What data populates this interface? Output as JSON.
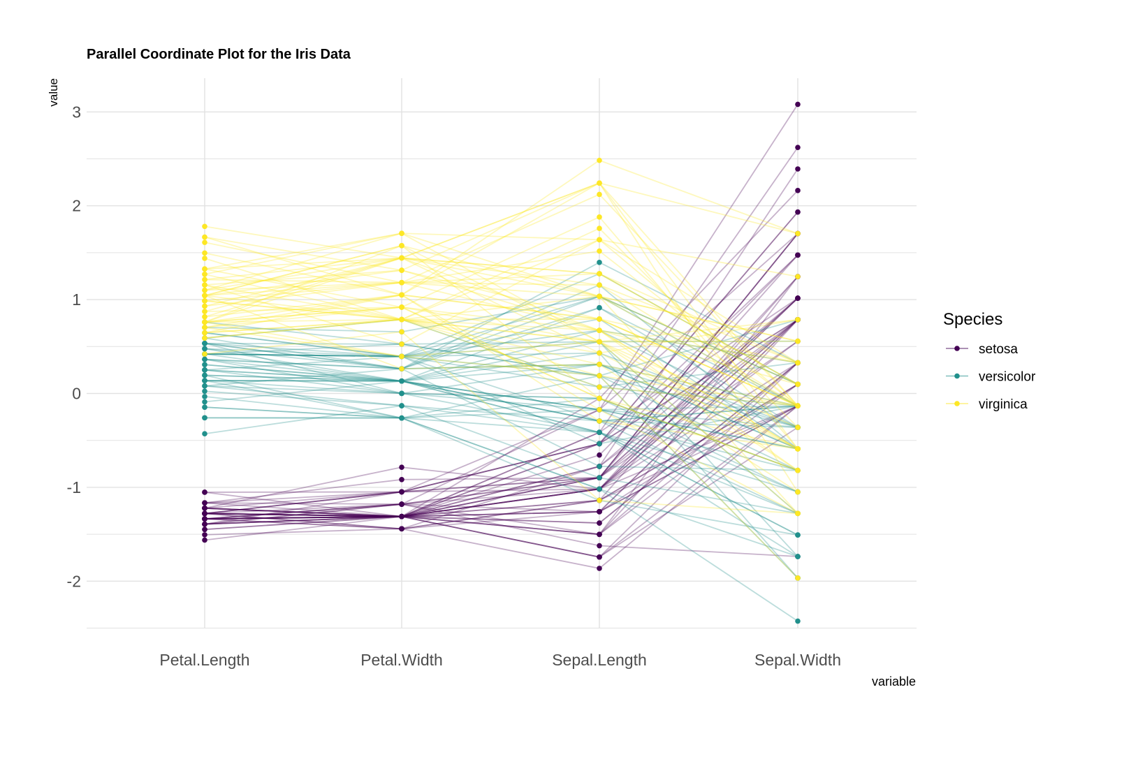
{
  "chart_data": {
    "type": "line",
    "subtype": "parallel-coordinates",
    "title": "Parallel Coordinate Plot for the Iris Data",
    "xlabel": "variable",
    "ylabel": "value",
    "categories": [
      "Petal.Length",
      "Petal.Width",
      "Sepal.Length",
      "Sepal.Width"
    ],
    "ylim": [
      -2.5,
      3.35
    ],
    "yticks": [
      "3",
      "2",
      "1",
      "0",
      "-1",
      "-2"
    ],
    "ytick_values": [
      3,
      2,
      1,
      0,
      -1,
      -2
    ],
    "grid": true,
    "scaling": "standardize (z-score per variable)",
    "legend": {
      "title": "Species",
      "position": "right"
    },
    "series": [
      {
        "name": "setosa",
        "color": "#440154",
        "values_raw": [
          [
            1.4,
            0.2,
            5.1,
            3.5
          ],
          [
            1.4,
            0.2,
            4.9,
            3.0
          ],
          [
            1.3,
            0.2,
            4.7,
            3.2
          ],
          [
            1.5,
            0.2,
            4.6,
            3.1
          ],
          [
            1.4,
            0.2,
            5.0,
            3.6
          ],
          [
            1.7,
            0.4,
            5.4,
            3.9
          ],
          [
            1.4,
            0.3,
            4.6,
            3.4
          ],
          [
            1.5,
            0.2,
            5.0,
            3.4
          ],
          [
            1.4,
            0.2,
            4.4,
            2.9
          ],
          [
            1.5,
            0.1,
            4.9,
            3.1
          ],
          [
            1.5,
            0.2,
            5.4,
            3.7
          ],
          [
            1.6,
            0.2,
            4.8,
            3.4
          ],
          [
            1.4,
            0.1,
            4.8,
            3.0
          ],
          [
            1.1,
            0.1,
            4.3,
            3.0
          ],
          [
            1.2,
            0.2,
            5.8,
            4.0
          ],
          [
            1.5,
            0.4,
            5.7,
            4.4
          ],
          [
            1.3,
            0.4,
            5.4,
            3.9
          ],
          [
            1.4,
            0.3,
            5.1,
            3.5
          ],
          [
            1.7,
            0.3,
            5.7,
            3.8
          ],
          [
            1.5,
            0.3,
            5.1,
            3.8
          ],
          [
            1.7,
            0.2,
            5.4,
            3.4
          ],
          [
            1.5,
            0.4,
            5.1,
            3.7
          ],
          [
            1.0,
            0.2,
            4.6,
            3.6
          ],
          [
            1.7,
            0.5,
            5.1,
            3.3
          ],
          [
            1.9,
            0.2,
            4.8,
            3.4
          ],
          [
            1.6,
            0.2,
            5.0,
            3.0
          ],
          [
            1.6,
            0.4,
            5.0,
            3.4
          ],
          [
            1.5,
            0.2,
            5.2,
            3.5
          ],
          [
            1.4,
            0.2,
            5.2,
            3.4
          ],
          [
            1.6,
            0.2,
            4.7,
            3.2
          ],
          [
            1.6,
            0.2,
            4.8,
            3.1
          ],
          [
            1.5,
            0.4,
            5.4,
            3.4
          ],
          [
            1.5,
            0.1,
            5.2,
            4.1
          ],
          [
            1.4,
            0.2,
            5.5,
            4.2
          ],
          [
            1.5,
            0.2,
            4.9,
            3.1
          ],
          [
            1.2,
            0.2,
            5.0,
            3.2
          ],
          [
            1.3,
            0.2,
            5.5,
            3.5
          ],
          [
            1.4,
            0.1,
            4.9,
            3.6
          ],
          [
            1.3,
            0.2,
            4.4,
            3.0
          ],
          [
            1.5,
            0.2,
            5.1,
            3.4
          ],
          [
            1.3,
            0.3,
            5.0,
            3.5
          ],
          [
            1.3,
            0.3,
            4.5,
            2.3
          ],
          [
            1.3,
            0.2,
            4.4,
            3.2
          ],
          [
            1.6,
            0.6,
            5.0,
            3.5
          ],
          [
            1.9,
            0.4,
            5.1,
            3.8
          ],
          [
            1.4,
            0.3,
            4.8,
            3.0
          ],
          [
            1.6,
            0.2,
            5.1,
            3.8
          ],
          [
            1.4,
            0.2,
            4.6,
            3.2
          ],
          [
            1.5,
            0.2,
            5.3,
            3.7
          ],
          [
            1.4,
            0.2,
            5.0,
            3.3
          ]
        ]
      },
      {
        "name": "versicolor",
        "color": "#21908C",
        "values_raw": [
          [
            4.7,
            1.4,
            7.0,
            3.2
          ],
          [
            4.5,
            1.5,
            6.4,
            3.2
          ],
          [
            4.9,
            1.5,
            6.9,
            3.1
          ],
          [
            4.0,
            1.3,
            5.5,
            2.3
          ],
          [
            4.6,
            1.5,
            6.5,
            2.8
          ],
          [
            4.5,
            1.3,
            5.7,
            2.8
          ],
          [
            4.7,
            1.6,
            6.3,
            3.3
          ],
          [
            3.3,
            1.0,
            4.9,
            2.4
          ],
          [
            4.6,
            1.3,
            6.6,
            2.9
          ],
          [
            3.9,
            1.4,
            5.2,
            2.7
          ],
          [
            3.5,
            1.0,
            5.0,
            2.0
          ],
          [
            4.2,
            1.5,
            5.9,
            3.0
          ],
          [
            4.0,
            1.0,
            6.0,
            2.2
          ],
          [
            4.7,
            1.4,
            6.1,
            2.9
          ],
          [
            3.6,
            1.3,
            5.6,
            2.9
          ],
          [
            4.4,
            1.4,
            6.7,
            3.1
          ],
          [
            4.5,
            1.5,
            5.6,
            3.0
          ],
          [
            4.1,
            1.0,
            5.8,
            2.7
          ],
          [
            4.5,
            1.5,
            6.2,
            2.2
          ],
          [
            3.9,
            1.1,
            5.6,
            2.5
          ],
          [
            4.8,
            1.8,
            5.9,
            3.2
          ],
          [
            4.0,
            1.3,
            6.1,
            2.8
          ],
          [
            4.9,
            1.5,
            6.3,
            2.5
          ],
          [
            4.7,
            1.2,
            6.1,
            2.8
          ],
          [
            4.3,
            1.3,
            6.4,
            2.9
          ],
          [
            4.4,
            1.4,
            6.6,
            3.0
          ],
          [
            4.8,
            1.4,
            6.8,
            2.8
          ],
          [
            5.0,
            1.7,
            6.7,
            3.0
          ],
          [
            4.5,
            1.5,
            6.0,
            2.9
          ],
          [
            3.5,
            1.0,
            5.7,
            2.6
          ],
          [
            3.8,
            1.1,
            5.5,
            2.4
          ],
          [
            3.7,
            1.0,
            5.5,
            2.4
          ],
          [
            3.9,
            1.2,
            5.8,
            2.7
          ],
          [
            5.1,
            1.6,
            6.0,
            2.7
          ],
          [
            4.5,
            1.5,
            5.4,
            3.0
          ],
          [
            4.5,
            1.6,
            6.0,
            3.4
          ],
          [
            4.7,
            1.5,
            6.7,
            3.1
          ],
          [
            4.4,
            1.3,
            6.3,
            2.3
          ],
          [
            4.1,
            1.3,
            5.6,
            3.0
          ],
          [
            4.0,
            1.3,
            5.5,
            2.5
          ],
          [
            4.4,
            1.2,
            5.5,
            2.6
          ],
          [
            4.6,
            1.4,
            6.1,
            3.0
          ],
          [
            4.0,
            1.2,
            5.8,
            2.6
          ],
          [
            3.3,
            1.0,
            5.0,
            2.3
          ],
          [
            4.2,
            1.3,
            5.6,
            2.7
          ],
          [
            4.2,
            1.2,
            5.7,
            3.0
          ],
          [
            4.2,
            1.3,
            5.7,
            2.9
          ],
          [
            4.3,
            1.3,
            6.2,
            2.9
          ],
          [
            3.0,
            1.1,
            5.1,
            2.5
          ],
          [
            4.1,
            1.3,
            5.7,
            2.8
          ]
        ]
      },
      {
        "name": "virginica",
        "color": "#FDE725",
        "values_raw": [
          [
            6.0,
            2.5,
            6.3,
            3.3
          ],
          [
            5.1,
            1.9,
            5.8,
            2.7
          ],
          [
            5.9,
            2.1,
            7.1,
            3.0
          ],
          [
            5.6,
            1.8,
            6.3,
            2.9
          ],
          [
            5.8,
            2.2,
            6.5,
            3.0
          ],
          [
            6.6,
            2.1,
            7.6,
            3.0
          ],
          [
            4.5,
            1.7,
            4.9,
            2.5
          ],
          [
            6.3,
            1.8,
            7.3,
            2.9
          ],
          [
            5.8,
            1.8,
            6.7,
            2.5
          ],
          [
            6.1,
            2.5,
            7.2,
            3.6
          ],
          [
            5.1,
            2.0,
            6.5,
            3.2
          ],
          [
            5.3,
            1.9,
            6.4,
            2.7
          ],
          [
            5.5,
            2.1,
            6.8,
            3.0
          ],
          [
            5.0,
            2.0,
            5.7,
            2.5
          ],
          [
            5.1,
            2.4,
            5.8,
            2.8
          ],
          [
            5.3,
            2.3,
            6.4,
            3.2
          ],
          [
            5.5,
            1.8,
            6.5,
            3.0
          ],
          [
            6.7,
            2.2,
            7.7,
            3.8
          ],
          [
            6.9,
            2.3,
            7.7,
            2.6
          ],
          [
            5.0,
            1.5,
            6.0,
            2.2
          ],
          [
            5.7,
            2.3,
            6.9,
            3.2
          ],
          [
            4.9,
            2.0,
            5.6,
            2.8
          ],
          [
            6.7,
            2.0,
            7.7,
            2.8
          ],
          [
            4.9,
            1.8,
            6.3,
            2.7
          ],
          [
            5.7,
            2.1,
            6.7,
            3.3
          ],
          [
            6.0,
            1.8,
            7.2,
            3.2
          ],
          [
            4.8,
            1.8,
            6.2,
            2.8
          ],
          [
            4.9,
            1.8,
            6.1,
            3.0
          ],
          [
            5.6,
            2.1,
            6.4,
            2.8
          ],
          [
            5.8,
            1.6,
            7.2,
            3.0
          ],
          [
            6.1,
            1.9,
            7.4,
            2.8
          ],
          [
            6.4,
            2.0,
            7.9,
            3.8
          ],
          [
            5.6,
            2.2,
            6.4,
            2.8
          ],
          [
            5.1,
            1.5,
            6.3,
            2.8
          ],
          [
            5.6,
            1.4,
            6.1,
            2.6
          ],
          [
            6.1,
            2.3,
            7.7,
            3.0
          ],
          [
            5.6,
            2.4,
            6.3,
            3.4
          ],
          [
            5.5,
            1.8,
            6.4,
            3.1
          ],
          [
            4.8,
            1.8,
            6.0,
            3.0
          ],
          [
            5.4,
            2.1,
            6.9,
            3.1
          ],
          [
            5.6,
            2.4,
            6.7,
            3.1
          ],
          [
            5.1,
            2.3,
            6.9,
            3.1
          ],
          [
            5.1,
            1.9,
            5.8,
            2.7
          ],
          [
            5.9,
            2.3,
            6.8,
            3.2
          ],
          [
            5.7,
            2.5,
            6.7,
            3.3
          ],
          [
            5.2,
            2.3,
            6.7,
            3.0
          ],
          [
            5.0,
            1.9,
            6.3,
            2.5
          ],
          [
            5.2,
            2.0,
            6.5,
            3.0
          ],
          [
            5.4,
            2.3,
            6.2,
            3.4
          ],
          [
            5.1,
            1.8,
            5.9,
            3.0
          ]
        ]
      }
    ]
  }
}
